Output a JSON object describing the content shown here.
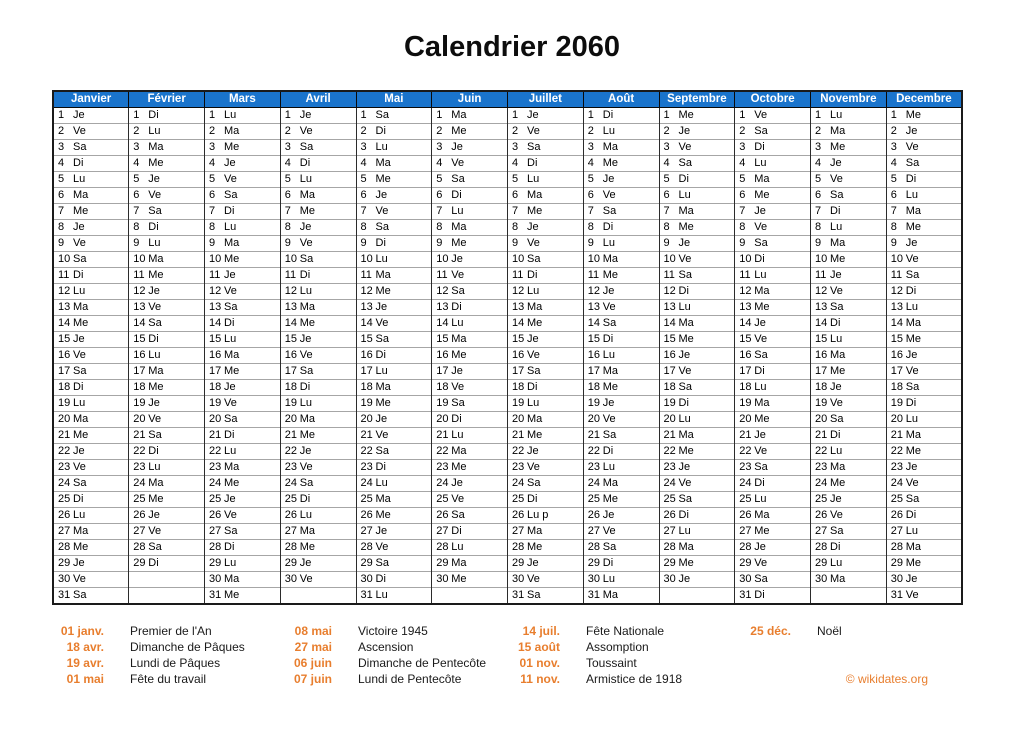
{
  "page_title": "Calendrier 2060",
  "colors": {
    "header_blue": "#1a74cc",
    "holiday_orange": "#e87e2e",
    "sunday_shade_start": "#c2c2c2",
    "sunday_shade_end": "#e4e4e4",
    "saturday_shade_start": "#e3e3e3",
    "saturday_shade_end": "#fdfdfd"
  },
  "calendar": {
    "max_rows": 31,
    "months": [
      {
        "name": "Janvier",
        "weekdays": [
          "Je",
          "Ve",
          "Sa",
          "Di",
          "Lu",
          "Ma",
          "Me",
          "Je",
          "Ve",
          "Sa",
          "Di",
          "Lu",
          "Ma",
          "Me",
          "Je",
          "Ve",
          "Sa",
          "Di",
          "Lu",
          "Ma",
          "Me",
          "Je",
          "Ve",
          "Sa",
          "Di",
          "Lu",
          "Ma",
          "Me",
          "Je",
          "Ve",
          "Sa"
        ]
      },
      {
        "name": "Février",
        "weekdays": [
          "Di",
          "Lu",
          "Ma",
          "Me",
          "Je",
          "Ve",
          "Sa",
          "Di",
          "Lu",
          "Ma",
          "Me",
          "Je",
          "Ve",
          "Sa",
          "Di",
          "Lu",
          "Ma",
          "Me",
          "Je",
          "Ve",
          "Sa",
          "Di",
          "Lu",
          "Ma",
          "Me",
          "Je",
          "Ve",
          "Sa",
          "Di"
        ]
      },
      {
        "name": "Mars",
        "weekdays": [
          "Lu",
          "Ma",
          "Me",
          "Je",
          "Ve",
          "Sa",
          "Di",
          "Lu",
          "Ma",
          "Me",
          "Je",
          "Ve",
          "Sa",
          "Di",
          "Lu",
          "Ma",
          "Me",
          "Je",
          "Ve",
          "Sa",
          "Di",
          "Lu",
          "Ma",
          "Me",
          "Je",
          "Ve",
          "Sa",
          "Di",
          "Lu",
          "Ma",
          "Me"
        ]
      },
      {
        "name": "Avril",
        "weekdays": [
          "Je",
          "Ve",
          "Sa",
          "Di",
          "Lu",
          "Ma",
          "Me",
          "Je",
          "Ve",
          "Sa",
          "Di",
          "Lu",
          "Ma",
          "Me",
          "Je",
          "Ve",
          "Sa",
          "Di",
          "Lu",
          "Ma",
          "Me",
          "Je",
          "Ve",
          "Sa",
          "Di",
          "Lu",
          "Ma",
          "Me",
          "Je",
          "Ve"
        ]
      },
      {
        "name": "Mai",
        "weekdays": [
          "Sa",
          "Di",
          "Lu",
          "Ma",
          "Me",
          "Je",
          "Ve",
          "Sa",
          "Di",
          "Lu",
          "Ma",
          "Me",
          "Je",
          "Ve",
          "Sa",
          "Di",
          "Lu",
          "Ma",
          "Me",
          "Je",
          "Ve",
          "Sa",
          "Di",
          "Lu",
          "Ma",
          "Me",
          "Je",
          "Ve",
          "Sa",
          "Di",
          "Lu"
        ]
      },
      {
        "name": "Juin",
        "weekdays": [
          "Ma",
          "Me",
          "Je",
          "Ve",
          "Sa",
          "Di",
          "Lu",
          "Ma",
          "Me",
          "Je",
          "Ve",
          "Sa",
          "Di",
          "Lu",
          "Ma",
          "Me",
          "Je",
          "Ve",
          "Sa",
          "Di",
          "Lu",
          "Ma",
          "Me",
          "Je",
          "Ve",
          "Sa",
          "Di",
          "Lu",
          "Ma",
          "Me"
        ]
      },
      {
        "name": "Juillet",
        "weekdays": [
          "Je",
          "Ve",
          "Sa",
          "Di",
          "Lu",
          "Ma",
          "Me",
          "Je",
          "Ve",
          "Sa",
          "Di",
          "Lu",
          "Ma",
          "Me",
          "Je",
          "Ve",
          "Sa",
          "Di",
          "Lu",
          "Ma",
          "Me",
          "Je",
          "Ve",
          "Sa",
          "Di",
          "Lu p",
          "Ma",
          "Me",
          "Je",
          "Ve",
          "Sa"
        ]
      },
      {
        "name": "Août",
        "weekdays": [
          "Di",
          "Lu",
          "Ma",
          "Me",
          "Je",
          "Ve",
          "Sa",
          "Di",
          "Lu",
          "Ma",
          "Me",
          "Je",
          "Ve",
          "Sa",
          "Di",
          "Lu",
          "Ma",
          "Me",
          "Je",
          "Ve",
          "Sa",
          "Di",
          "Lu",
          "Ma",
          "Me",
          "Je",
          "Ve",
          "Sa",
          "Di",
          "Lu",
          "Ma"
        ]
      },
      {
        "name": "Septembre",
        "weekdays": [
          "Me",
          "Je",
          "Ve",
          "Sa",
          "Di",
          "Lu",
          "Ma",
          "Me",
          "Je",
          "Ve",
          "Sa",
          "Di",
          "Lu",
          "Ma",
          "Me",
          "Je",
          "Ve",
          "Sa",
          "Di",
          "Lu",
          "Ma",
          "Me",
          "Je",
          "Ve",
          "Sa",
          "Di",
          "Lu",
          "Ma",
          "Me",
          "Je"
        ]
      },
      {
        "name": "Octobre",
        "weekdays": [
          "Ve",
          "Sa",
          "Di",
          "Lu",
          "Ma",
          "Me",
          "Je",
          "Ve",
          "Sa",
          "Di",
          "Lu",
          "Ma",
          "Me",
          "Je",
          "Ve",
          "Sa",
          "Di",
          "Lu",
          "Ma",
          "Me",
          "Je",
          "Ve",
          "Sa",
          "Di",
          "Lu",
          "Ma",
          "Me",
          "Je",
          "Ve",
          "Sa",
          "Di"
        ]
      },
      {
        "name": "Novembre",
        "weekdays": [
          "Lu",
          "Ma",
          "Me",
          "Je",
          "Ve",
          "Sa",
          "Di",
          "Lu",
          "Ma",
          "Me",
          "Je",
          "Ve",
          "Sa",
          "Di",
          "Lu",
          "Ma",
          "Me",
          "Je",
          "Ve",
          "Sa",
          "Di",
          "Lu",
          "Ma",
          "Me",
          "Je",
          "Ve",
          "Sa",
          "Di",
          "Lu",
          "Ma"
        ]
      },
      {
        "name": "Decembre",
        "weekdays": [
          "Me",
          "Je",
          "Ve",
          "Sa",
          "Di",
          "Lu",
          "Ma",
          "Me",
          "Je",
          "Ve",
          "Sa",
          "Di",
          "Lu",
          "Ma",
          "Me",
          "Je",
          "Ve",
          "Sa",
          "Di",
          "Lu",
          "Ma",
          "Me",
          "Je",
          "Ve",
          "Sa",
          "Di",
          "Lu",
          "Ma",
          "Me",
          "Je",
          "Ve"
        ]
      }
    ]
  },
  "holidays": {
    "columns": [
      [
        {
          "date": "01 janv.",
          "label": "Premier de l'An"
        },
        {
          "date": "18 avr.",
          "label": "Dimanche de Pâques"
        },
        {
          "date": "19 avr.",
          "label": "Lundi de Pâques"
        },
        {
          "date": "01 mai",
          "label": "Fête du travail"
        }
      ],
      [
        {
          "date": "08 mai",
          "label": "Victoire 1945"
        },
        {
          "date": "27 mai",
          "label": "Ascension"
        },
        {
          "date": "06 juin",
          "label": "Dimanche de Pentecôte"
        },
        {
          "date": "07 juin",
          "label": "Lundi de Pentecôte"
        }
      ],
      [
        {
          "date": "14 juil.",
          "label": "Fête Nationale"
        },
        {
          "date": "15 août",
          "label": "Assomption"
        },
        {
          "date": "01 nov.",
          "label": "Toussaint"
        },
        {
          "date": "11 nov.",
          "label": "Armistice de 1918"
        }
      ],
      [
        {
          "date": "25 déc.",
          "label": "Noël"
        }
      ]
    ]
  },
  "copyright": "© wikidates.org"
}
